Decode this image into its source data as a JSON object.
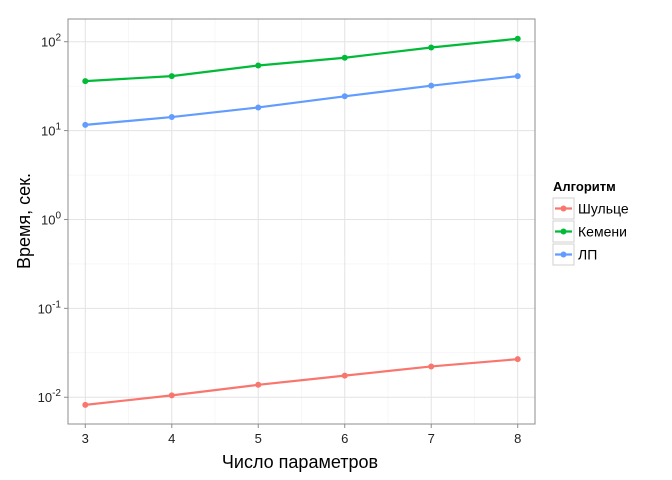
{
  "chart_data": {
    "type": "line",
    "title": "",
    "xlabel": "Число параметров",
    "ylabel": "Время, сек.",
    "x": [
      3,
      4,
      5,
      6,
      7,
      8
    ],
    "xlim": [
      2.8,
      8.2
    ],
    "yscale": "log10",
    "ylim": [
      0.005,
      180
    ],
    "y_ticks": [
      {
        "value": 0.01,
        "base": "10",
        "exp": "-2"
      },
      {
        "value": 0.1,
        "base": "10",
        "exp": "-1"
      },
      {
        "value": 1,
        "base": "10",
        "exp": "0"
      },
      {
        "value": 10,
        "base": "10",
        "exp": "1"
      },
      {
        "value": 100,
        "base": "10",
        "exp": "2"
      }
    ],
    "x_ticks": [
      3,
      4,
      5,
      6,
      7,
      8
    ],
    "grid": true,
    "legend": {
      "title": "Алгоритм",
      "placement": "right"
    },
    "series": [
      {
        "name": "Шульце",
        "color": "#F8766D",
        "values": [
          0.0082,
          0.0105,
          0.0138,
          0.0175,
          0.0222,
          0.0268
        ]
      },
      {
        "name": "Кемени",
        "color": "#00BA38",
        "values": [
          36,
          41,
          54,
          66,
          86,
          108
        ]
      },
      {
        "name": "ЛП",
        "color": "#619CFF",
        "values": [
          11.6,
          14.2,
          18.2,
          24.3,
          32.0,
          41.0
        ]
      }
    ]
  }
}
